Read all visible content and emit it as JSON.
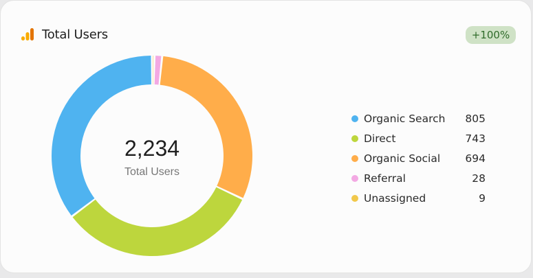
{
  "card": {
    "title": "Total Users",
    "badge": "+100%",
    "brand_icon": "analytics-bars-icon",
    "badge_color": "#cfe2c6"
  },
  "chart_data": {
    "type": "pie",
    "variant": "donut",
    "title": "Total Users",
    "center_value": "2,234",
    "center_label": "Total Users",
    "total": 2234,
    "categories": [
      "Organic Search",
      "Direct",
      "Organic Social",
      "Referral",
      "Unassigned"
    ],
    "values": [
      805,
      743,
      694,
      28,
      9
    ],
    "display_values": [
      "805",
      "743",
      "694",
      "28",
      "9"
    ],
    "colors": [
      "#4fb3f0",
      "#bdd63d",
      "#ffad4a",
      "#f3a9e3",
      "#f1c84b"
    ],
    "slice_order_clockwise_from_top": [
      "Unassigned",
      "Referral",
      "Organic Social",
      "Direct",
      "Organic Search"
    ],
    "legend_position": "right"
  }
}
